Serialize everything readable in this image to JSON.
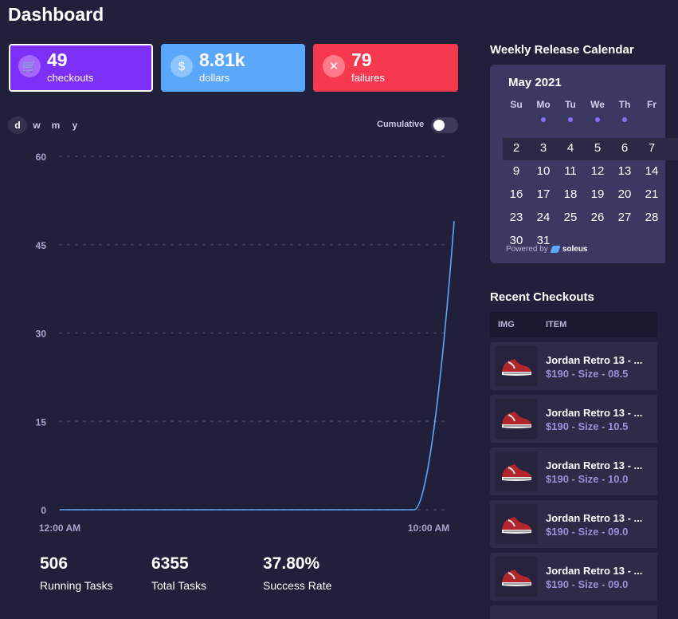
{
  "header": {
    "title": "Dashboard"
  },
  "stats": [
    {
      "id": "checkouts",
      "icon": "cart-icon",
      "glyph": "🛒",
      "value": "49",
      "label": "checkouts",
      "color": "#7b2ff7"
    },
    {
      "id": "dollars",
      "icon": "dollar-icon",
      "glyph": "$",
      "value": "8.81k",
      "label": "dollars",
      "color": "#5aa7fb"
    },
    {
      "id": "failures",
      "icon": "close-icon",
      "glyph": "✕",
      "value": "79",
      "label": "failures",
      "color": "#f6394f"
    }
  ],
  "period_tabs": [
    "d",
    "w",
    "m",
    "y"
  ],
  "active_period": "d",
  "cumulative": {
    "label": "Cumulative",
    "enabled": false
  },
  "chart_data": {
    "type": "line",
    "series": [
      {
        "x": [
          "12:00 AM",
          "10:00 AM"
        ],
        "y": [
          0,
          49
        ],
        "color": "#5aa7fb"
      }
    ],
    "xlabel": "",
    "ylabel": "",
    "y_ticks": [
      0,
      15,
      30,
      45,
      60
    ],
    "x_ticks": [
      "12:00 AM",
      "10:00 AM"
    ],
    "ylim": [
      0,
      60
    ],
    "grid": true
  },
  "bottom_stats": [
    {
      "value": "506",
      "label": "Running Tasks"
    },
    {
      "value": "6355",
      "label": "Total Tasks"
    },
    {
      "value": "37.80%",
      "label": "Success Rate"
    }
  ],
  "calendar": {
    "title": "Weekly Release Calendar",
    "month": "May 2021",
    "weekdays": [
      "Su",
      "Mo",
      "Tu",
      "We",
      "Th",
      "Fr"
    ],
    "release_day_dots": [
      false,
      true,
      true,
      true,
      true,
      false
    ],
    "weeks": [
      [
        "2",
        "3",
        "4",
        "5",
        "6",
        "7"
      ],
      [
        "9",
        "10",
        "11",
        "12",
        "13",
        "14"
      ],
      [
        "16",
        "17",
        "18",
        "19",
        "20",
        "21"
      ],
      [
        "23",
        "24",
        "25",
        "26",
        "27",
        "28"
      ],
      [
        "30",
        "31"
      ]
    ],
    "highlighted_week": 0,
    "powered_by": "Powered by",
    "brand": "soleus"
  },
  "recent_checkouts": {
    "title": "Recent Checkouts",
    "columns": [
      "IMG",
      "ITEM"
    ],
    "rows": [
      {
        "name": "Jordan Retro 13 - ...",
        "price": "$190 - Size - 08.5"
      },
      {
        "name": "Jordan Retro 13 - ...",
        "price": "$190 - Size - 10.5"
      },
      {
        "name": "Jordan Retro 13 - ...",
        "price": "$190 - Size - 10.0"
      },
      {
        "name": "Jordan Retro 13 - ...",
        "price": "$190 - Size - 09.0"
      },
      {
        "name": "Jordan Retro 13 - ...",
        "price": "$190 - Size - 09.0"
      }
    ]
  }
}
